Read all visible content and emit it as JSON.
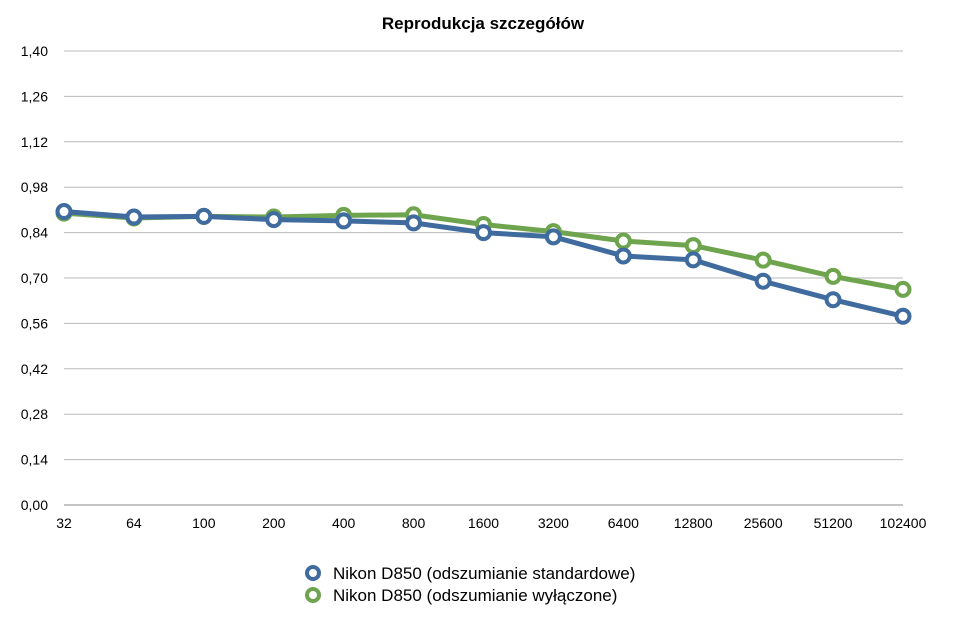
{
  "chart_data": {
    "type": "line",
    "title": "Reprodukcja szczegółów",
    "xlabel": "",
    "ylabel": "",
    "categories": [
      "32",
      "64",
      "100",
      "200",
      "400",
      "800",
      "1600",
      "3200",
      "6400",
      "12800",
      "25600",
      "51200",
      "102400"
    ],
    "yticks": [
      "0,00",
      "0,14",
      "0,28",
      "0,42",
      "0,56",
      "0,70",
      "0,84",
      "0,98",
      "1,12",
      "1,26",
      "1,40"
    ],
    "ylim": [
      0,
      1.4
    ],
    "grid": true,
    "legend_position": "bottom",
    "series": [
      {
        "name": "Nikon D850 (odszumianie standardowe)",
        "color": "#3f6b9e",
        "values": [
          0.905,
          0.888,
          0.89,
          0.88,
          0.876,
          0.87,
          0.84,
          0.827,
          0.768,
          0.756,
          0.69,
          0.633,
          0.582
        ]
      },
      {
        "name": "Nikon D850 (odszumianie wyłączone)",
        "color": "#6ea44e",
        "values": [
          0.9,
          0.885,
          0.89,
          0.888,
          0.893,
          0.895,
          0.865,
          0.843,
          0.814,
          0.8,
          0.755,
          0.705,
          0.665
        ]
      }
    ]
  }
}
